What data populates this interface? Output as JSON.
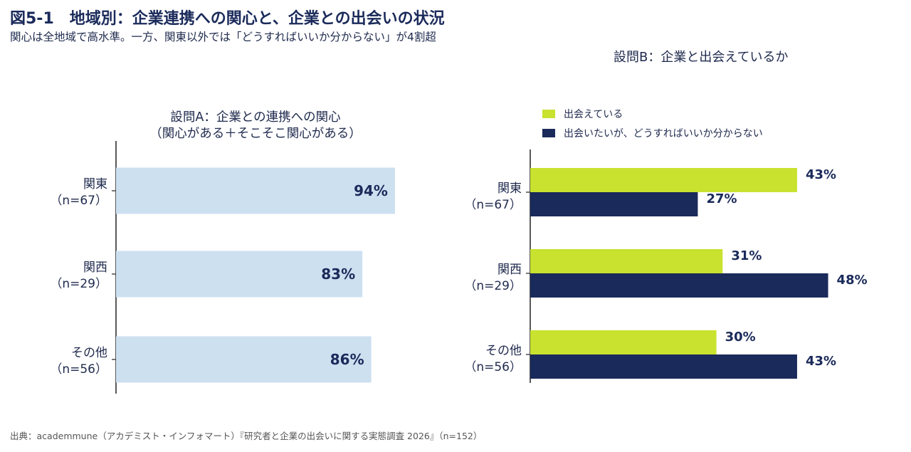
{
  "header": {
    "title": "図5-1　地域別：企業連携への関心と、企業との出会いの状況",
    "subtitle": "関心は全地域で高水準。一方、関東以外では「どうすればいいか分からない」が4割超"
  },
  "chart_data": [
    {
      "type": "bar",
      "orientation": "horizontal",
      "title_lines": [
        "設問A：企業との連携への関心",
        "（関心がある＋そこそこ関心がある）"
      ],
      "categories": [
        {
          "name": "関東",
          "n": "（n=67）"
        },
        {
          "name": "関西",
          "n": "（n=29）"
        },
        {
          "name": "その他",
          "n": "（n=56）"
        }
      ],
      "values": [
        94,
        83,
        86
      ],
      "value_labels": [
        "94%",
        "83%",
        "86%"
      ],
      "unit": "%",
      "xlim": [
        0,
        100
      ],
      "color": "#cce0f0"
    },
    {
      "type": "bar",
      "orientation": "horizontal",
      "title": "設問B：企業と出会えているか",
      "categories": [
        {
          "name": "関東",
          "n": "（n=67）"
        },
        {
          "name": "関西",
          "n": "（n=29）"
        },
        {
          "name": "その他",
          "n": "（n=56）"
        }
      ],
      "series": [
        {
          "name": "出会えている",
          "values": [
            43,
            31,
            30
          ],
          "value_labels": [
            "43%",
            "31%",
            "30%"
          ],
          "color": "#c8e22f"
        },
        {
          "name": "出会いたいが、どうすればいいか分からない",
          "values": [
            27,
            48,
            43
          ],
          "value_labels": [
            "27%",
            "48%",
            "43%"
          ],
          "color": "#1a2a5a"
        }
      ],
      "unit": "%",
      "xlim": [
        0,
        100
      ],
      "legend_position": "top"
    }
  ],
  "footer": {
    "source": "出典：academmune（アカデミスト・インフォマート）『研究者と企業の出会いに関する実態調査 2026』（n=152）"
  }
}
